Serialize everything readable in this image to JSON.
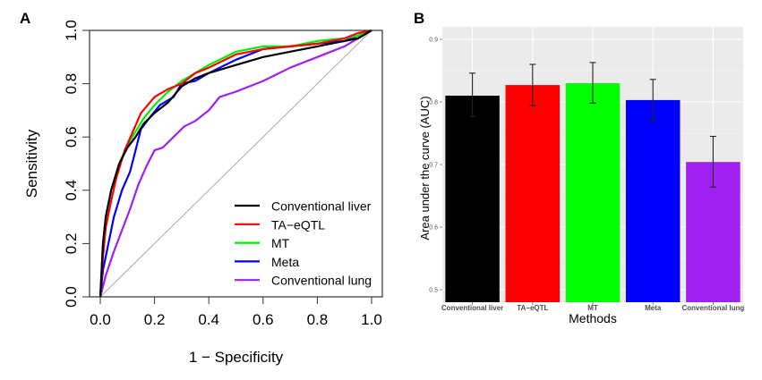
{
  "chart_data": [
    {
      "panel": "A",
      "type": "line",
      "title": "",
      "xlabel": "1 − Specificity",
      "ylabel": "Sensitivity",
      "xlim": [
        0,
        1
      ],
      "ylim": [
        0,
        1
      ],
      "xticks": [
        "0.0",
        "0.2",
        "0.4",
        "0.6",
        "0.8",
        "1.0"
      ],
      "yticks": [
        "0.0",
        "0.2",
        "0.4",
        "0.6",
        "0.8",
        "1.0"
      ],
      "grid": false,
      "legend_position": "bottom-right",
      "reference_line": {
        "name": "chance",
        "color": "#aaaaaa",
        "points": [
          [
            0,
            0
          ],
          [
            1,
            1
          ]
        ]
      },
      "series": [
        {
          "name": "Conventional liver",
          "color": "#000000",
          "points": [
            [
              0,
              0
            ],
            [
              0.01,
              0.2
            ],
            [
              0.02,
              0.3
            ],
            [
              0.04,
              0.4
            ],
            [
              0.07,
              0.5
            ],
            [
              0.1,
              0.56
            ],
            [
              0.13,
              0.6
            ],
            [
              0.16,
              0.65
            ],
            [
              0.2,
              0.69
            ],
            [
              0.25,
              0.73
            ],
            [
              0.3,
              0.79
            ],
            [
              0.35,
              0.82
            ],
            [
              0.4,
              0.84
            ],
            [
              0.5,
              0.87
            ],
            [
              0.6,
              0.9
            ],
            [
              0.7,
              0.92
            ],
            [
              0.8,
              0.94
            ],
            [
              0.9,
              0.96
            ],
            [
              0.95,
              0.97
            ],
            [
              1,
              1
            ]
          ]
        },
        {
          "name": "TA−eQTL",
          "color": "#ff0000",
          "points": [
            [
              0,
              0
            ],
            [
              0.01,
              0.15
            ],
            [
              0.02,
              0.26
            ],
            [
              0.04,
              0.36
            ],
            [
              0.06,
              0.45
            ],
            [
              0.09,
              0.55
            ],
            [
              0.12,
              0.62
            ],
            [
              0.15,
              0.69
            ],
            [
              0.2,
              0.75
            ],
            [
              0.25,
              0.78
            ],
            [
              0.3,
              0.8
            ],
            [
              0.35,
              0.84
            ],
            [
              0.4,
              0.86
            ],
            [
              0.5,
              0.91
            ],
            [
              0.6,
              0.93
            ],
            [
              0.7,
              0.94
            ],
            [
              0.8,
              0.95
            ],
            [
              0.9,
              0.97
            ],
            [
              0.95,
              0.99
            ],
            [
              1,
              1
            ]
          ]
        },
        {
          "name": "MT",
          "color": "#00ee00",
          "points": [
            [
              0,
              0
            ],
            [
              0.01,
              0.2
            ],
            [
              0.02,
              0.3
            ],
            [
              0.04,
              0.4
            ],
            [
              0.07,
              0.5
            ],
            [
              0.1,
              0.57
            ],
            [
              0.13,
              0.62
            ],
            [
              0.16,
              0.67
            ],
            [
              0.2,
              0.72
            ],
            [
              0.25,
              0.77
            ],
            [
              0.3,
              0.81
            ],
            [
              0.35,
              0.84
            ],
            [
              0.4,
              0.87
            ],
            [
              0.5,
              0.92
            ],
            [
              0.6,
              0.94
            ],
            [
              0.7,
              0.94
            ],
            [
              0.8,
              0.96
            ],
            [
              0.9,
              0.97
            ],
            [
              0.95,
              0.98
            ],
            [
              1,
              1
            ]
          ]
        },
        {
          "name": "Meta",
          "color": "#0000ff",
          "points": [
            [
              0,
              0
            ],
            [
              0.01,
              0.1
            ],
            [
              0.03,
              0.2
            ],
            [
              0.05,
              0.3
            ],
            [
              0.08,
              0.4
            ],
            [
              0.11,
              0.47
            ],
            [
              0.13,
              0.55
            ],
            [
              0.15,
              0.63
            ],
            [
              0.18,
              0.67
            ],
            [
              0.22,
              0.72
            ],
            [
              0.27,
              0.75
            ],
            [
              0.3,
              0.8
            ],
            [
              0.35,
              0.81
            ],
            [
              0.4,
              0.84
            ],
            [
              0.5,
              0.89
            ],
            [
              0.6,
              0.93
            ],
            [
              0.7,
              0.94
            ],
            [
              0.8,
              0.95
            ],
            [
              0.9,
              0.96
            ],
            [
              1,
              1
            ]
          ]
        },
        {
          "name": "Conventional lung",
          "color": "#a020f0",
          "points": [
            [
              0,
              0
            ],
            [
              0.02,
              0.08
            ],
            [
              0.05,
              0.17
            ],
            [
              0.08,
              0.25
            ],
            [
              0.11,
              0.33
            ],
            [
              0.14,
              0.42
            ],
            [
              0.17,
              0.49
            ],
            [
              0.2,
              0.55
            ],
            [
              0.23,
              0.56
            ],
            [
              0.27,
              0.6
            ],
            [
              0.31,
              0.64
            ],
            [
              0.35,
              0.66
            ],
            [
              0.4,
              0.7
            ],
            [
              0.44,
              0.75
            ],
            [
              0.5,
              0.77
            ],
            [
              0.6,
              0.81
            ],
            [
              0.7,
              0.86
            ],
            [
              0.8,
              0.9
            ],
            [
              0.9,
              0.94
            ],
            [
              0.95,
              0.97
            ],
            [
              1,
              1
            ]
          ]
        }
      ]
    },
    {
      "panel": "B",
      "type": "bar",
      "title": "",
      "xlabel": "Methods",
      "ylabel": "Area under the curve (AUC)",
      "ylim": [
        0.48,
        0.92
      ],
      "yticks": [
        "0.5",
        "0.6",
        "0.7",
        "0.8",
        "0.9"
      ],
      "grid": true,
      "categories": [
        "Conventional liver",
        "TA−eQTL",
        "MT",
        "Meta",
        "Conventional lung"
      ],
      "values": [
        0.81,
        0.827,
        0.83,
        0.803,
        0.704
      ],
      "error_low": [
        0.777,
        0.794,
        0.798,
        0.77,
        0.664
      ],
      "error_high": [
        0.846,
        0.86,
        0.863,
        0.836,
        0.745
      ],
      "colors": [
        "#000000",
        "#ff0000",
        "#00ff00",
        "#0000ff",
        "#a020f0"
      ],
      "background": "#ebebeb"
    }
  ],
  "panels": {
    "a_label": "A",
    "b_label": "B"
  }
}
